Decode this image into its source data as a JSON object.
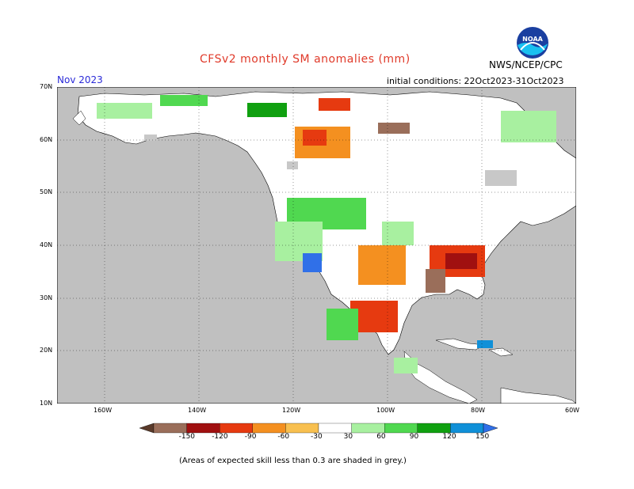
{
  "header": {
    "title": "CFSv2 monthly SM anomalies (mm)",
    "month": "Nov 2023",
    "initial_conditions": "initial conditions: 22Oct2023-31Oct2023",
    "agency": "NWS/NCEP/CPC",
    "logo_text": "NOAA"
  },
  "map": {
    "lat_labels": [
      "70N",
      "60N",
      "50N",
      "40N",
      "30N",
      "20N",
      "10N"
    ],
    "lon_labels": [
      "160W",
      "140W",
      "120W",
      "100W",
      "80W",
      "60W"
    ],
    "ocean_color": "#c0c0c0",
    "land_color": "#ffffff",
    "skill_mask_color": "#c0c0c0"
  },
  "colorbar": {
    "labels": [
      "-150",
      "-120",
      "-90",
      "-60",
      "-30",
      "30",
      "60",
      "90",
      "120",
      "150"
    ],
    "colors": [
      "#5a3a2a",
      "#9a6e5a",
      "#a01010",
      "#e63a10",
      "#f49020",
      "#f8c050",
      "#ffffff",
      "#a8f0a0",
      "#50d850",
      "#10a010",
      "#1090d8",
      "#3070e8"
    ]
  },
  "footer": {
    "note": "(Areas of expected skill less than 0.3 are shaded in grey.)"
  }
}
